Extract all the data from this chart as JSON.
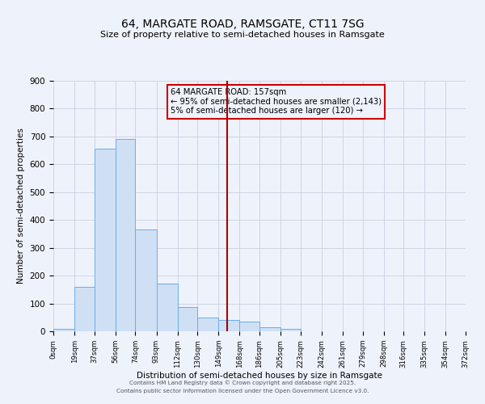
{
  "title": "64, MARGATE ROAD, RAMSGATE, CT11 7SG",
  "subtitle": "Size of property relative to semi-detached houses in Ramsgate",
  "xlabel": "Distribution of semi-detached houses by size in Ramsgate",
  "ylabel": "Number of semi-detached properties",
  "bar_color": "#cfe0f5",
  "bar_edge_color": "#6aaee8",
  "background_color": "#eef2fb",
  "grid_color": "#c8d0e0",
  "annotation_line1": "64 MARGATE ROAD: 157sqm",
  "annotation_line2": "← 95% of semi-detached houses are smaller (2,143)",
  "annotation_line3": "5% of semi-detached houses are larger (120) →",
  "annotation_box_edge_color": "#cc0000",
  "vline_x": 157,
  "vline_color": "#aa0000",
  "bin_edges": [
    0,
    19,
    37,
    56,
    74,
    93,
    112,
    130,
    149,
    168,
    186,
    205,
    223,
    242,
    261,
    279,
    298,
    316,
    335,
    354,
    372
  ],
  "bin_labels": [
    "0sqm",
    "19sqm",
    "37sqm",
    "56sqm",
    "74sqm",
    "93sqm",
    "112sqm",
    "130sqm",
    "149sqm",
    "168sqm",
    "186sqm",
    "205sqm",
    "223sqm",
    "242sqm",
    "261sqm",
    "279sqm",
    "298sqm",
    "316sqm",
    "335sqm",
    "354sqm",
    "372sqm"
  ],
  "bar_heights": [
    8,
    160,
    655,
    690,
    365,
    170,
    88,
    50,
    40,
    35,
    14,
    10,
    0,
    0,
    0,
    0,
    0,
    0,
    0,
    0
  ],
  "ylim": [
    0,
    900
  ],
  "xlim": [
    0,
    372
  ],
  "yticks": [
    0,
    100,
    200,
    300,
    400,
    500,
    600,
    700,
    800,
    900
  ],
  "footer_line1": "Contains HM Land Registry data © Crown copyright and database right 2025.",
  "footer_line2": "Contains public sector information licensed under the Open Government Licence v3.0."
}
